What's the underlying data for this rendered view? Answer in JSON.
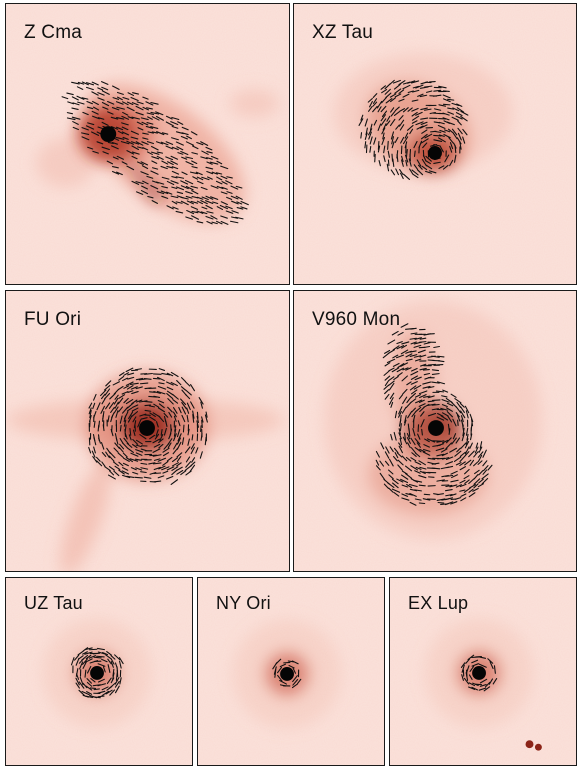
{
  "figure": {
    "background": "#fbe3dc",
    "core_color": "#8c2418",
    "vector_color": "#111111",
    "panels": [
      {
        "id": "zcma",
        "label": "Z Cma"
      },
      {
        "id": "xztau",
        "label": "XZ Tau"
      },
      {
        "id": "fuori",
        "label": "FU Ori"
      },
      {
        "id": "v960",
        "label": "V960 Mon"
      },
      {
        "id": "uztau",
        "label": "UZ Tau"
      },
      {
        "id": "nyori",
        "label": "NY Ori"
      },
      {
        "id": "exlup",
        "label": "EX Lup"
      }
    ]
  }
}
